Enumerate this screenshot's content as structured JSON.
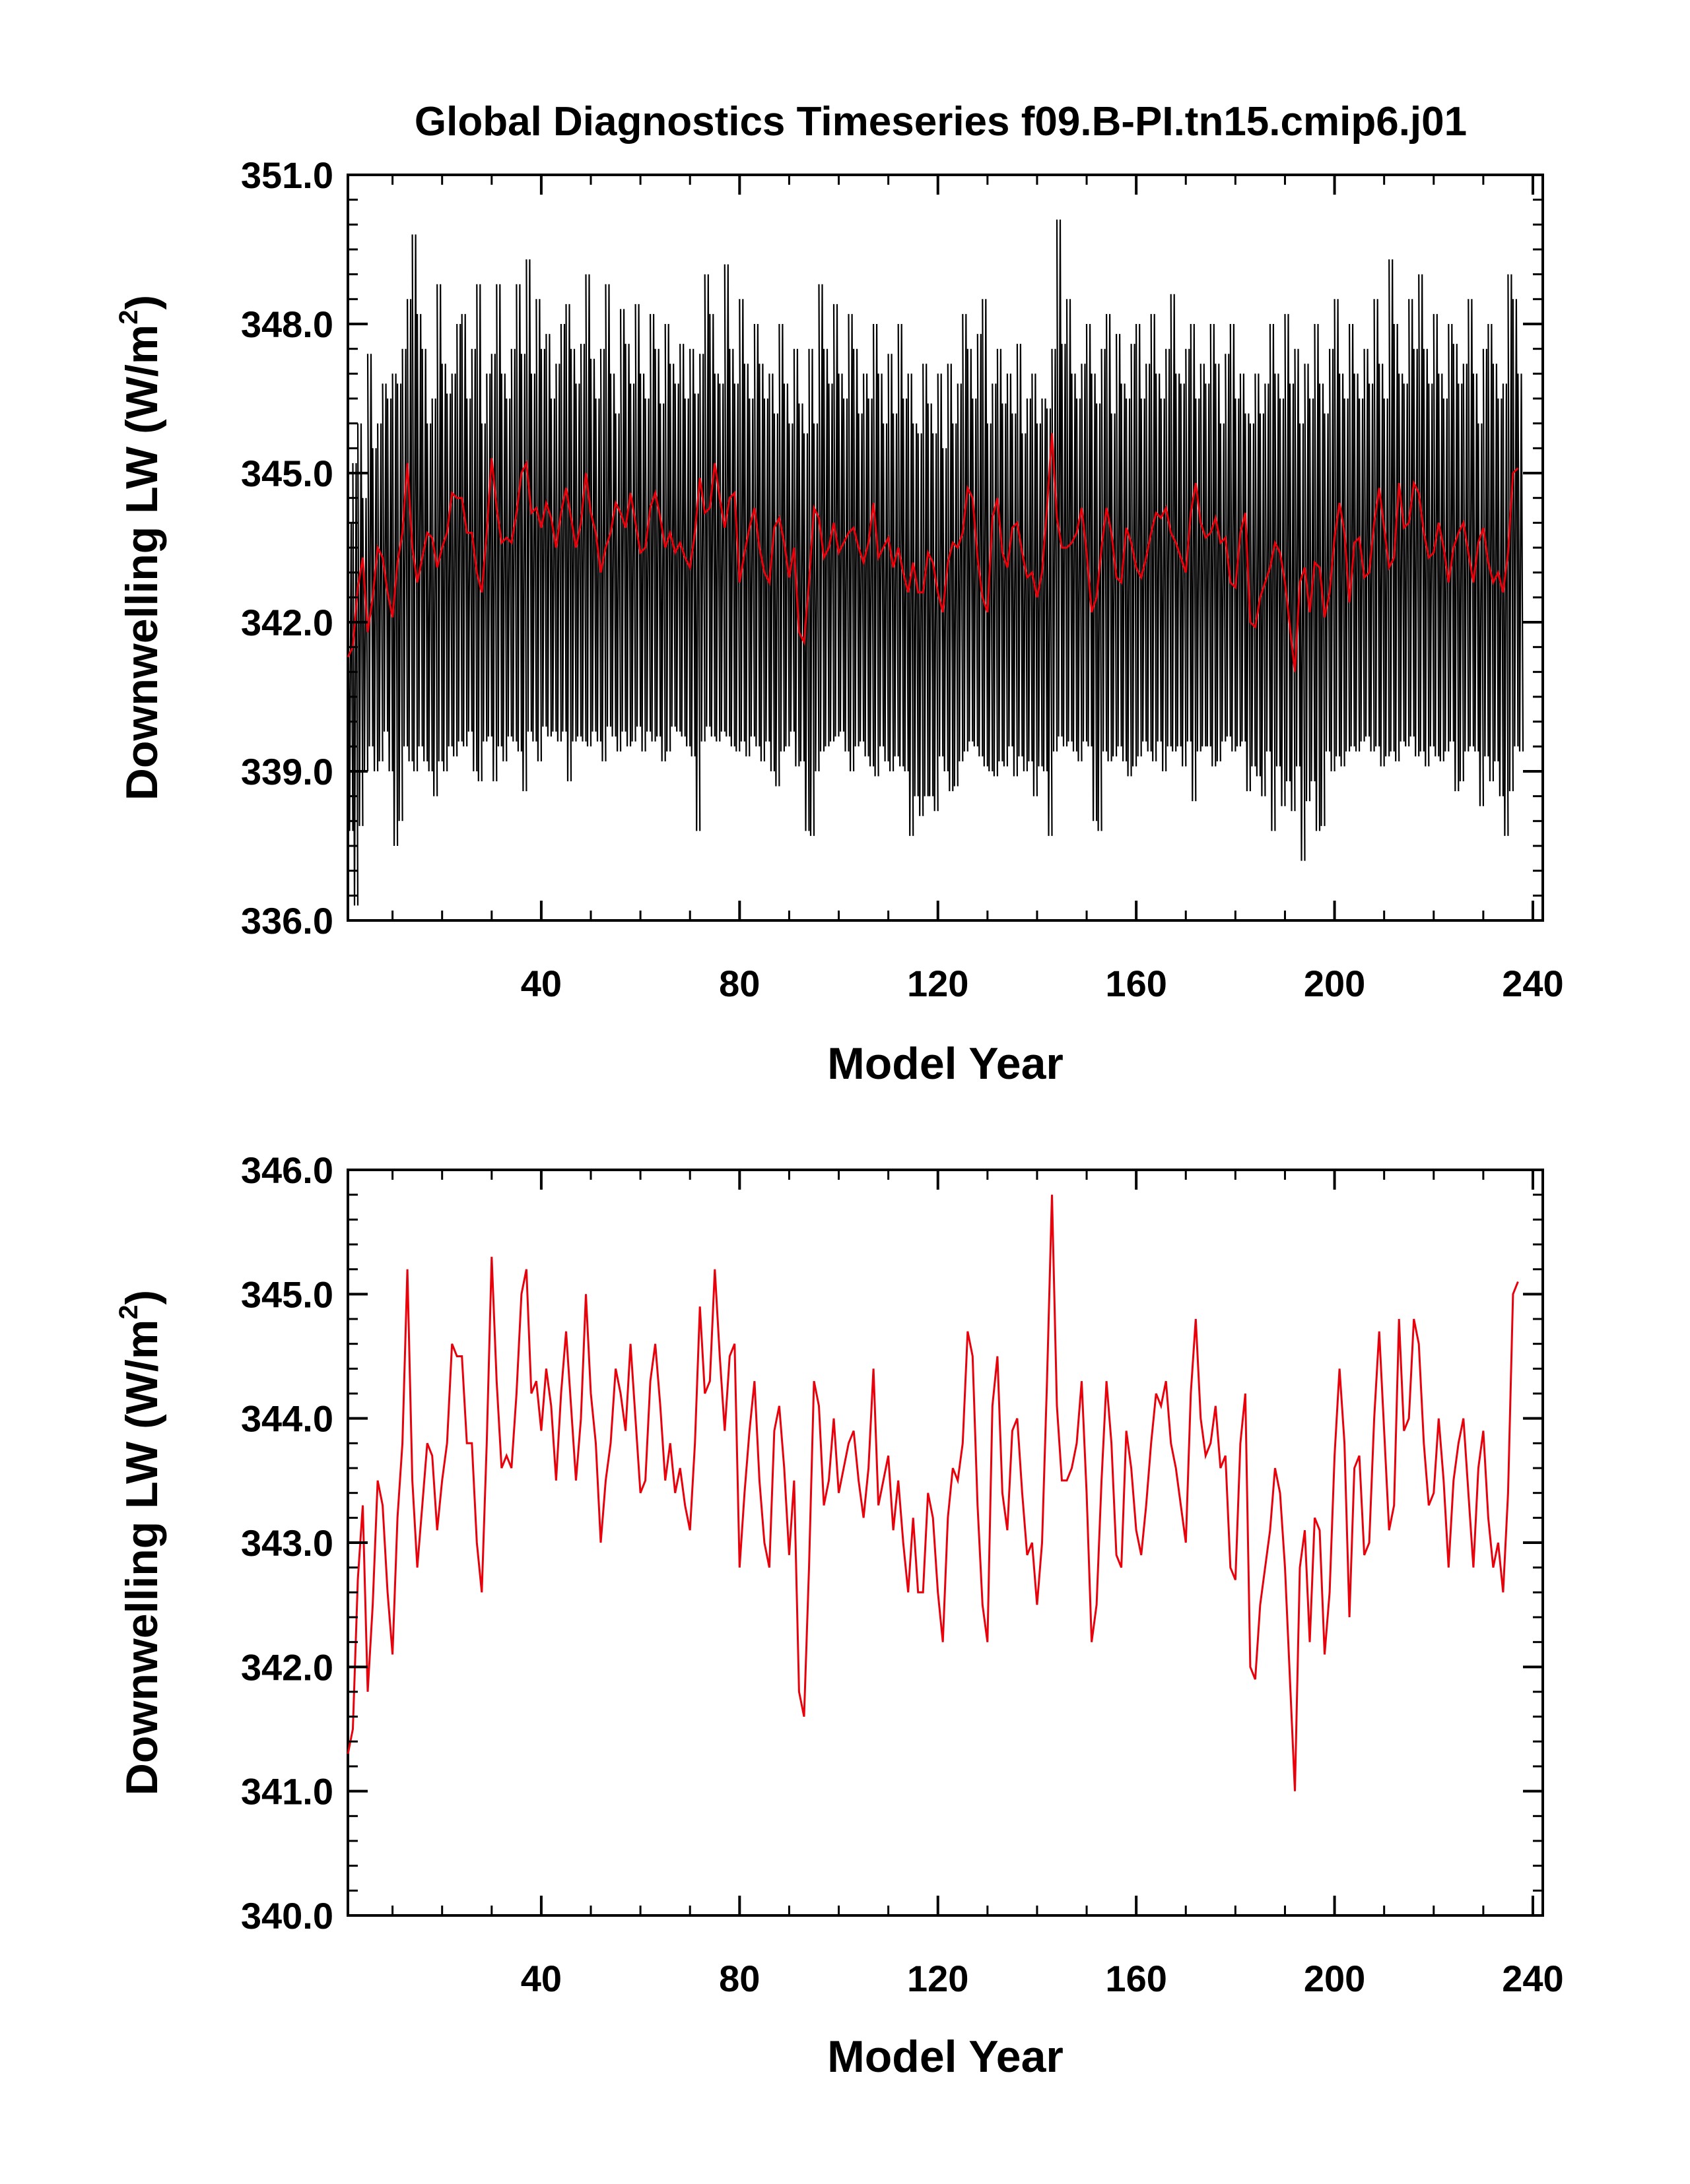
{
  "title": "Global Diagnostics Timeseries f09.B-PI.tn15.cmip6.j01",
  "colors": {
    "monthly": "#000000",
    "annual": "#e8000b",
    "axes": "#000000"
  },
  "chart_data": [
    {
      "type": "line",
      "title": "Global Diagnostics Timeseries f09.B-PI.tn15.cmip6.j01",
      "xlabel": "Model Year",
      "ylabel": "Downwelling LW (W/m²)",
      "ylabel_text": "Downwelling LW (W/m",
      "ylabel_sup": "2",
      "ylabel_close": ")",
      "xlim": [
        1,
        242
      ],
      "ylim": [
        336.0,
        351.0
      ],
      "xticks": [
        40,
        80,
        120,
        160,
        200,
        240
      ],
      "xtick_labels": [
        "40",
        "80",
        "120",
        "160",
        "200",
        "240"
      ],
      "yticks": [
        336.0,
        339.0,
        342.0,
        345.0,
        348.0,
        351.0
      ],
      "ytick_labels": [
        "336.0",
        "339.0",
        "342.0",
        "345.0",
        "348.0",
        "351.0"
      ],
      "grid": false,
      "series": [
        {
          "kind": "monthly",
          "color": "#000000",
          "year_start": 1,
          "year_end": 241,
          "note_env": "each model year spans monthly values between env_min and env_max",
          "env_min": [
            337.8,
            336.3,
            337.9,
            339.0,
            339.5,
            339.0,
            339.2,
            339.8,
            339.0,
            337.5,
            338.0,
            339.5,
            339.2,
            339.0,
            339.5,
            339.2,
            339.0,
            338.5,
            339.2,
            339.0,
            339.5,
            339.3,
            339.6,
            339.5,
            339.8,
            339.0,
            338.8,
            339.6,
            339.7,
            338.8,
            339.5,
            339.2,
            339.7,
            339.6,
            339.4,
            338.6,
            339.8,
            339.6,
            339.2,
            339.9,
            339.7,
            339.8,
            339.6,
            339.8,
            338.8,
            339.6,
            339.7,
            339.6,
            339.5,
            339.8,
            339.6,
            339.2,
            339.9,
            339.7,
            339.4,
            339.8,
            339.5,
            339.6,
            339.9,
            339.4,
            339.8,
            339.6,
            339.7,
            339.2,
            339.4,
            339.9,
            339.8,
            339.7,
            339.5,
            339.3,
            337.8,
            339.6,
            339.9,
            339.7,
            339.6,
            339.8,
            339.7,
            339.5,
            339.4,
            339.6,
            339.3,
            339.7,
            339.5,
            339.2,
            339.6,
            339.0,
            338.7,
            339.4,
            339.5,
            339.8,
            339.1,
            339.2,
            337.8,
            337.7,
            339.0,
            339.4,
            339.5,
            339.6,
            339.7,
            339.8,
            339.4,
            339.0,
            339.5,
            339.6,
            339.3,
            339.1,
            338.9,
            339.5,
            339.2,
            339.0,
            339.3,
            339.1,
            339.0,
            337.7,
            338.5,
            338.1,
            338.5,
            338.5,
            338.2,
            339.3,
            339.0,
            338.6,
            338.7,
            339.2,
            339.4,
            339.6,
            339.5,
            339.3,
            339.1,
            339.0,
            338.9,
            339.2,
            339.1,
            339.5,
            338.9,
            339.3,
            339.0,
            339.2,
            338.5,
            339.1,
            339.0,
            337.7,
            339.4,
            339.7,
            339.5,
            339.6,
            339.4,
            339.2,
            339.6,
            339.5,
            338.0,
            337.8,
            339.4,
            339.2,
            339.3,
            339.5,
            339.2,
            338.9,
            339.1,
            339.3,
            339.6,
            339.4,
            339.2,
            339.6,
            339.0,
            339.5,
            339.4,
            339.5,
            339.1,
            339.6,
            338.4,
            339.4,
            339.5,
            339.5,
            339.1,
            339.2,
            339.6,
            339.7,
            339.4,
            339.5,
            339.6,
            338.6,
            339.1,
            338.9,
            338.5,
            339.4,
            337.8,
            339.1,
            338.3,
            338.8,
            338.2,
            339.1,
            337.2,
            338.4,
            338.8,
            337.8,
            337.9,
            339.4,
            339.0,
            339.3,
            339.1,
            339.4,
            339.5,
            339.4,
            339.6,
            339.7,
            339.4,
            339.5,
            339.1,
            339.3,
            339.4,
            339.2,
            339.6,
            339.5,
            339.7,
            339.3,
            339.4,
            339.1,
            339.5,
            339.3,
            339.2,
            339.4,
            339.6,
            338.6,
            338.8,
            339.4,
            339.5,
            339.4,
            338.3,
            339.3,
            338.8,
            339.2,
            338.5,
            337.7,
            338.6,
            339.5,
            339.4
          ],
          "env_max": [
            344.0,
            345.2,
            346.0,
            344.5,
            347.4,
            345.5,
            346.0,
            346.8,
            346.5,
            347.0,
            346.8,
            347.5,
            348.5,
            349.8,
            348.2,
            347.5,
            346.0,
            346.5,
            348.8,
            347.2,
            346.6,
            347.0,
            348.0,
            348.2,
            346.5,
            347.5,
            348.8,
            346.0,
            347.0,
            347.4,
            348.8,
            347.0,
            346.5,
            347.5,
            348.8,
            347.4,
            349.3,
            347.0,
            348.5,
            347.5,
            347.8,
            346.5,
            347.2,
            348.0,
            348.4,
            347.5,
            346.8,
            347.6,
            349.0,
            347.3,
            346.5,
            347.5,
            348.8,
            347.0,
            346.2,
            348.3,
            347.6,
            346.8,
            348.4,
            347.0,
            346.5,
            348.2,
            347.5,
            346.4,
            348.0,
            347.2,
            346.8,
            347.6,
            346.5,
            347.5,
            346.6,
            347.4,
            349.0,
            348.2,
            347.0,
            346.8,
            349.2,
            347.5,
            346.8,
            348.5,
            347.2,
            346.5,
            348.0,
            347.2,
            346.5,
            347.0,
            346.2,
            348.0,
            346.8,
            346.0,
            347.5,
            346.4,
            345.8,
            347.5,
            346.0,
            348.8,
            347.5,
            346.8,
            348.4,
            347.0,
            346.5,
            348.2,
            347.5,
            346.2,
            347.0,
            346.5,
            348.0,
            347.0,
            346.0,
            347.4,
            346.2,
            348.0,
            346.5,
            347.0,
            346.0,
            345.8,
            347.2,
            346.4,
            345.8,
            347.0,
            345.5,
            347.2,
            346.0,
            346.8,
            348.2,
            347.5,
            346.5,
            347.8,
            348.5,
            346.0,
            346.8,
            347.5,
            346.4,
            347.0,
            346.2,
            347.6,
            345.8,
            346.5,
            347.0,
            346.0,
            346.5,
            346.3,
            347.5,
            350.1,
            347.6,
            348.5,
            347.0,
            346.5,
            347.2,
            348.0,
            347.0,
            346.4,
            347.5,
            348.2,
            346.2,
            347.8,
            346.8,
            346.5,
            347.6,
            348.0,
            346.5,
            347.2,
            348.2,
            347.0,
            346.5,
            347.5,
            348.6,
            347.0,
            346.8,
            347.5,
            348.0,
            346.5,
            347.2,
            346.8,
            348.0,
            347.2,
            346.0,
            347.4,
            348.0,
            346.5,
            347.0,
            346.2,
            346.0,
            347.0,
            346.2,
            346.8,
            348.0,
            347.0,
            346.5,
            348.2,
            346.8,
            347.5,
            346.0,
            347.2,
            346.5,
            348.0,
            346.8,
            346.2,
            347.5,
            348.5,
            347.0,
            346.5,
            348.0,
            347.0,
            346.5,
            347.5,
            346.8,
            348.5,
            347.2,
            346.5,
            349.3,
            348.0,
            347.0,
            346.8,
            348.5,
            347.5,
            349.0,
            347.5,
            346.8,
            348.2,
            347.0,
            346.5,
            348.0,
            347.6,
            346.8,
            347.2,
            348.5,
            347.0,
            346.0,
            347.5,
            348.0,
            347.2,
            346.5,
            346.8,
            349.0,
            348.5,
            347.0
          ]
        },
        {
          "kind": "annual",
          "color": "#e8000b",
          "x_start": 1,
          "values": [
            341.3,
            341.5,
            342.7,
            343.3,
            341.8,
            342.5,
            343.5,
            343.3,
            342.6,
            342.1,
            343.2,
            343.8,
            345.2,
            343.5,
            342.8,
            343.3,
            343.8,
            343.7,
            343.1,
            343.5,
            343.8,
            344.6,
            344.5,
            344.5,
            343.8,
            343.8,
            343.0,
            342.6,
            343.8,
            345.3,
            344.3,
            343.6,
            343.7,
            343.6,
            344.2,
            345.0,
            345.2,
            344.2,
            344.3,
            343.9,
            344.4,
            344.1,
            343.5,
            344.2,
            344.7,
            344.1,
            343.5,
            344.0,
            345.0,
            344.2,
            343.8,
            343.0,
            343.5,
            343.8,
            344.4,
            344.2,
            343.9,
            344.6,
            344.0,
            343.4,
            343.5,
            344.3,
            344.6,
            344.1,
            343.5,
            343.8,
            343.4,
            343.6,
            343.3,
            343.1,
            343.8,
            344.9,
            344.2,
            344.3,
            345.2,
            344.5,
            343.9,
            344.5,
            344.6,
            342.8,
            343.4,
            343.9,
            344.3,
            343.5,
            343.0,
            342.8,
            343.9,
            344.1,
            343.6,
            342.9,
            343.5,
            341.8,
            341.6,
            342.8,
            344.3,
            344.1,
            343.3,
            343.5,
            344.0,
            343.4,
            343.6,
            343.8,
            343.9,
            343.5,
            343.2,
            343.6,
            344.4,
            343.3,
            343.5,
            343.7,
            343.1,
            343.5,
            343.0,
            342.6,
            343.2,
            342.6,
            342.6,
            343.4,
            343.2,
            342.6,
            342.2,
            343.2,
            343.6,
            343.5,
            343.8,
            344.7,
            344.5,
            343.3,
            342.5,
            342.2,
            344.1,
            344.5,
            343.4,
            343.1,
            343.9,
            344.0,
            343.4,
            342.9,
            343.0,
            342.5,
            343.0,
            344.3,
            345.8,
            344.1,
            343.5,
            343.5,
            343.6,
            343.8,
            344.3,
            343.4,
            342.2,
            342.5,
            343.5,
            344.3,
            343.8,
            342.9,
            342.8,
            343.9,
            343.6,
            343.1,
            342.9,
            343.3,
            343.8,
            344.2,
            344.1,
            344.3,
            343.8,
            343.6,
            343.3,
            343.0,
            344.2,
            344.8,
            344.0,
            343.7,
            343.8,
            344.1,
            343.6,
            343.7,
            342.8,
            342.7,
            343.8,
            344.2,
            342.0,
            341.9,
            342.5,
            342.8,
            343.1,
            343.6,
            343.4,
            342.8,
            341.9,
            341.0,
            342.8,
            343.1,
            342.2,
            343.2,
            343.1,
            342.1,
            342.6,
            343.7,
            344.4,
            343.8,
            342.4,
            343.6,
            343.7,
            342.9,
            343.0,
            344.0,
            344.7,
            343.9,
            343.1,
            343.3,
            344.8,
            343.9,
            344.0,
            344.8,
            344.6,
            343.8,
            343.3,
            343.4,
            344.0,
            343.5,
            342.8,
            343.5,
            343.8,
            344.0,
            343.4,
            342.8,
            343.6,
            343.9,
            343.2,
            342.8,
            343.0,
            342.6,
            343.4,
            345.0,
            345.1
          ]
        }
      ]
    },
    {
      "type": "line",
      "title": "",
      "xlabel": "Model Year",
      "ylabel": "Downwelling LW (W/m²)",
      "ylabel_text": "Downwelling LW (W/m",
      "ylabel_sup": "2",
      "ylabel_close": ")",
      "xlim": [
        1,
        242
      ],
      "ylim": [
        340.0,
        346.0
      ],
      "xticks": [
        40,
        80,
        120,
        160,
        200,
        240
      ],
      "xtick_labels": [
        "40",
        "80",
        "120",
        "160",
        "200",
        "240"
      ],
      "yticks": [
        340.0,
        341.0,
        342.0,
        343.0,
        344.0,
        345.0,
        346.0
      ],
      "ytick_labels": [
        "340.0",
        "341.0",
        "342.0",
        "343.0",
        "344.0",
        "345.0",
        "346.0"
      ],
      "grid": false,
      "series": [
        {
          "kind": "annual",
          "color": "#e8000b",
          "x_start": 1,
          "values_ref": "same annual series as panel 1"
        }
      ]
    }
  ]
}
